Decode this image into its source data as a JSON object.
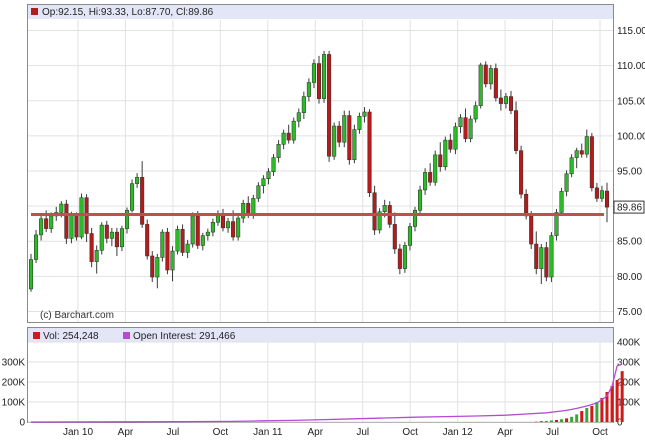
{
  "colors": {
    "up": "#2db928",
    "down": "#b31c1c",
    "support_line": "#c0504d",
    "oi_line": "#b64ad6",
    "volume_bar": "#d01a1a",
    "volume_bar_up": "#3aa63a"
  },
  "legend": {
    "ohlc_text": "Op:92.15, Hi:93.33, Lo:87.70, Cl:89.86",
    "vol_text": "Vol: 254,248",
    "oi_text": "Open Interest: 291,466"
  },
  "watermark": "(c) Barchart.com",
  "last_price_label": "89.86",
  "chart_data": [
    {
      "type": "candlestick",
      "title": "",
      "x_ticks": [
        "Jan 10",
        "Apr",
        "Jul",
        "Oct",
        "Jan 11",
        "Apr",
        "Jul",
        "Oct",
        "Jan 12",
        "Apr",
        "Jul",
        "Oct"
      ],
      "y_ticks": [
        "75.00",
        "80.00",
        "85.00",
        "90.00",
        "95.00",
        "100.00",
        "105.00",
        "110.00",
        "115.00"
      ],
      "ylim": [
        73.5,
        116.5
      ],
      "support_level": 88.8,
      "last_close": 89.86,
      "grid": true,
      "weeks": [
        [
          78.2,
          83.2,
          77.8,
          82.4
        ],
        [
          82.4,
          86.6,
          81.9,
          85.9
        ],
        [
          85.9,
          88.9,
          85.1,
          88.2
        ],
        [
          88.2,
          89.4,
          86.3,
          86.8
        ],
        [
          86.8,
          89.1,
          86.2,
          88.6
        ],
        [
          88.6,
          89.9,
          87.9,
          89.1
        ],
        [
          89.1,
          90.7,
          88.4,
          90.3
        ],
        [
          90.3,
          90.9,
          84.6,
          85.4
        ],
        [
          85.4,
          89.2,
          84.7,
          88.7
        ],
        [
          88.7,
          89.1,
          85.1,
          85.6
        ],
        [
          85.6,
          91.8,
          85.3,
          91.2
        ],
        [
          91.2,
          91.7,
          84.9,
          86.1
        ],
        [
          86.1,
          86.9,
          81.3,
          82.1
        ],
        [
          82.1,
          84.4,
          80.4,
          83.7
        ],
        [
          83.7,
          87.7,
          83.1,
          87.3
        ],
        [
          87.3,
          87.9,
          84.7,
          85.4
        ],
        [
          85.4,
          86.9,
          84.3,
          86.3
        ],
        [
          86.3,
          86.9,
          82.9,
          84.2
        ],
        [
          84.2,
          87.2,
          83.6,
          86.8
        ],
        [
          86.8,
          89.8,
          86.1,
          89.4
        ],
        [
          89.4,
          93.8,
          89.1,
          93.2
        ],
        [
          93.2,
          94.7,
          92.6,
          94.1
        ],
        [
          94.1,
          96.4,
          86.9,
          87.4
        ],
        [
          87.4,
          88.1,
          82.4,
          82.9
        ],
        [
          82.9,
          83.6,
          79.2,
          79.9
        ],
        [
          79.9,
          83.2,
          78.3,
          82.7
        ],
        [
          82.7,
          86.7,
          82.1,
          86.3
        ],
        [
          86.3,
          86.9,
          80.3,
          80.9
        ],
        [
          80.9,
          84.3,
          79.3,
          83.6
        ],
        [
          83.6,
          87.2,
          83.1,
          86.7
        ],
        [
          86.7,
          87.4,
          82.9,
          83.4
        ],
        [
          83.4,
          85.2,
          82.6,
          84.6
        ],
        [
          84.6,
          89.1,
          84.1,
          88.6
        ],
        [
          88.6,
          89.3,
          83.9,
          84.4
        ],
        [
          84.4,
          86.2,
          83.7,
          85.8
        ],
        [
          85.8,
          86.8,
          85.1,
          86.3
        ],
        [
          86.3,
          88.2,
          85.7,
          87.7
        ],
        [
          87.7,
          89.4,
          87.2,
          88.9
        ],
        [
          88.9,
          89.6,
          86.4,
          86.9
        ],
        [
          86.9,
          88.3,
          86.2,
          87.8
        ],
        [
          87.8,
          89.4,
          85.1,
          85.6
        ],
        [
          85.6,
          88.7,
          85.1,
          88.3
        ],
        [
          88.3,
          90.9,
          87.6,
          90.4
        ],
        [
          90.4,
          91.4,
          88.3,
          88.8
        ],
        [
          88.8,
          91.6,
          88.2,
          91.1
        ],
        [
          91.1,
          93.4,
          90.6,
          92.9
        ],
        [
          92.9,
          94.4,
          91.8,
          93.9
        ],
        [
          93.9,
          95.4,
          93.1,
          94.9
        ],
        [
          94.9,
          97.4,
          94.3,
          96.9
        ],
        [
          96.9,
          99.4,
          96.2,
          98.8
        ],
        [
          98.8,
          100.9,
          98.1,
          100.4
        ],
        [
          100.4,
          101.6,
          98.9,
          99.4
        ],
        [
          99.4,
          102.6,
          98.9,
          102.1
        ],
        [
          102.1,
          103.9,
          101.2,
          103.3
        ],
        [
          103.3,
          106.3,
          102.4,
          105.6
        ],
        [
          105.6,
          108.2,
          104.9,
          107.6
        ],
        [
          107.6,
          110.9,
          106.8,
          110.3
        ],
        [
          110.3,
          111.4,
          104.6,
          105.3
        ],
        [
          105.3,
          112.1,
          104.7,
          111.6
        ],
        [
          111.6,
          112.1,
          96.3,
          97.1
        ],
        [
          97.1,
          101.9,
          96.6,
          101.4
        ],
        [
          101.4,
          102.1,
          98.4,
          99.1
        ],
        [
          99.1,
          103.6,
          98.4,
          102.9
        ],
        [
          102.9,
          103.6,
          95.9,
          96.6
        ],
        [
          96.6,
          101.6,
          96.1,
          100.9
        ],
        [
          100.9,
          103.3,
          100.3,
          102.8
        ],
        [
          102.8,
          104.1,
          101.9,
          103.4
        ],
        [
          103.4,
          103.8,
          91.3,
          91.9
        ],
        [
          91.9,
          92.9,
          85.9,
          86.6
        ],
        [
          86.6,
          89.7,
          86.1,
          89.2
        ],
        [
          89.2,
          90.9,
          88.4,
          90.1
        ],
        [
          90.1,
          90.7,
          86.9,
          87.4
        ],
        [
          87.4,
          89.1,
          83.2,
          83.9
        ],
        [
          83.9,
          84.6,
          80.3,
          81.1
        ],
        [
          81.1,
          84.9,
          80.5,
          84.4
        ],
        [
          84.4,
          87.6,
          83.7,
          87.1
        ],
        [
          87.1,
          89.9,
          86.4,
          89.4
        ],
        [
          89.4,
          92.9,
          88.9,
          92.3
        ],
        [
          92.3,
          95.4,
          91.6,
          94.8
        ],
        [
          94.8,
          96.1,
          92.9,
          93.4
        ],
        [
          93.4,
          97.9,
          92.9,
          97.3
        ],
        [
          97.3,
          99.1,
          94.9,
          95.6
        ],
        [
          95.6,
          99.9,
          95.1,
          99.4
        ],
        [
          99.4,
          100.3,
          97.6,
          98.1
        ],
        [
          98.1,
          101.9,
          97.4,
          101.3
        ],
        [
          101.3,
          103.1,
          100.4,
          102.6
        ],
        [
          102.6,
          103.9,
          99.1,
          99.6
        ],
        [
          99.6,
          102.9,
          99.1,
          102.4
        ],
        [
          102.4,
          104.9,
          101.9,
          104.3
        ],
        [
          104.3,
          110.4,
          103.9,
          110.1
        ],
        [
          110.1,
          110.6,
          106.9,
          107.4
        ],
        [
          107.4,
          110.1,
          106.6,
          109.6
        ],
        [
          109.6,
          110.3,
          104.9,
          105.4
        ],
        [
          105.4,
          106.6,
          103.6,
          104.6
        ],
        [
          104.6,
          106.1,
          103.9,
          105.6
        ],
        [
          105.6,
          106.4,
          103.1,
          103.6
        ],
        [
          103.6,
          104.9,
          97.4,
          97.9
        ],
        [
          97.9,
          98.6,
          91.1,
          91.7
        ],
        [
          91.7,
          92.4,
          88.1,
          88.6
        ],
        [
          88.6,
          89.3,
          83.9,
          84.6
        ],
        [
          84.6,
          86.4,
          80.3,
          81.1
        ],
        [
          81.1,
          84.6,
          78.9,
          84.1
        ],
        [
          84.1,
          84.9,
          79.3,
          79.9
        ],
        [
          79.9,
          86.3,
          79.2,
          85.8
        ],
        [
          85.8,
          89.6,
          85.1,
          89.1
        ],
        [
          89.1,
          92.6,
          88.6,
          92.1
        ],
        [
          92.1,
          95.1,
          91.4,
          94.6
        ],
        [
          94.6,
          97.4,
          94.1,
          96.9
        ],
        [
          96.9,
          98.3,
          95.4,
          97.9
        ],
        [
          97.9,
          98.9,
          96.9,
          97.4
        ],
        [
          97.4,
          100.9,
          96.9,
          99.9
        ],
        [
          99.9,
          100.4,
          92.1,
          92.6
        ],
        [
          92.6,
          93.3,
          90.6,
          91.1
        ],
        [
          91.1,
          92.9,
          90.6,
          92.2
        ],
        [
          92.15,
          93.33,
          87.7,
          89.86
        ]
      ]
    },
    {
      "type": "bar+line",
      "title": "",
      "y_ticks_left": [
        "0",
        "100K",
        "200K",
        "300K"
      ],
      "y_ticks_right": [
        "0",
        "100K",
        "200K",
        "300K",
        "400K"
      ],
      "ylim": [
        0,
        400000
      ],
      "series": [
        {
          "name": "Vol",
          "type": "bar",
          "values": [
            0,
            0,
            0,
            0,
            0,
            0,
            0,
            0,
            0,
            0,
            0,
            0,
            0,
            0,
            0,
            0,
            0,
            0,
            0,
            0,
            0,
            0,
            0,
            0,
            0,
            0,
            0,
            0,
            0,
            0,
            0,
            0,
            0,
            0,
            0,
            0,
            0,
            0,
            0,
            0,
            0,
            0,
            0,
            0,
            0,
            0,
            0,
            0,
            0,
            0,
            0,
            0,
            0,
            0,
            0,
            0,
            0,
            0,
            0,
            0,
            0,
            0,
            0,
            0,
            0,
            0,
            0,
            0,
            0,
            0,
            0,
            0,
            0,
            0,
            0,
            0,
            0,
            0,
            0,
            0,
            0,
            0,
            0,
            0,
            0,
            0,
            0,
            0,
            0,
            0,
            0,
            0,
            0,
            0,
            0,
            0,
            0,
            0,
            0,
            0,
            2000,
            4000,
            5000,
            8000,
            10000,
            14000,
            18000,
            26000,
            38000,
            55000,
            70000,
            80000,
            100000,
            120000,
            150000,
            180000,
            210000,
            254248
          ],
          "up": [
            false,
            false,
            false,
            false,
            false,
            false,
            false,
            false,
            false,
            false,
            false,
            false,
            false,
            false,
            false,
            false,
            false,
            false,
            false,
            false,
            false,
            false,
            false,
            false,
            false,
            false,
            false,
            false,
            false,
            false,
            false,
            false,
            false,
            false,
            false,
            false,
            false,
            false,
            false,
            false,
            false,
            false,
            false,
            false,
            false,
            false,
            false,
            false,
            false,
            false,
            false,
            false,
            false,
            false,
            false,
            false,
            false,
            false,
            false,
            false,
            false,
            false,
            false,
            false,
            false,
            false,
            false,
            false,
            false,
            false,
            false,
            false,
            false,
            false,
            false,
            false,
            false,
            false,
            false,
            false,
            false,
            false,
            false,
            false,
            false,
            false,
            false,
            false,
            false,
            false,
            false,
            false,
            false,
            false,
            false,
            false,
            false,
            false,
            false,
            false,
            true,
            false,
            true,
            true,
            false,
            true,
            false,
            true,
            true,
            false,
            true,
            false,
            true,
            false,
            false,
            false,
            false,
            false
          ]
        },
        {
          "name": "Open Interest",
          "type": "line",
          "x_index": [
            0,
            10,
            20,
            30,
            40,
            46,
            52,
            58,
            64,
            70,
            76,
            82,
            88,
            94,
            98,
            102,
            104,
            106,
            108,
            110,
            112,
            114,
            115,
            116,
            117
          ],
          "values": [
            0,
            500,
            1000,
            2000,
            3000,
            6000,
            8000,
            12000,
            16000,
            20000,
            24000,
            27000,
            30000,
            34000,
            40000,
            46000,
            52000,
            58000,
            68000,
            80000,
            95000,
            130000,
            180000,
            280000,
            291466
          ]
        }
      ]
    }
  ]
}
